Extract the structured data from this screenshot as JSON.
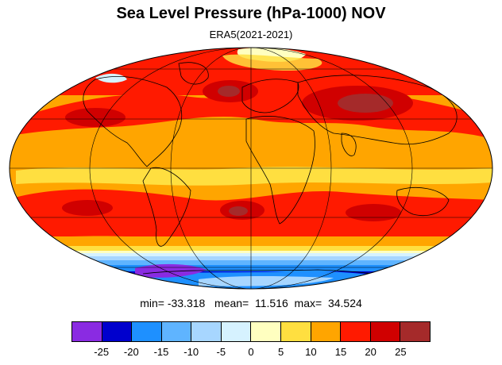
{
  "title": "Sea Level Pressure (hPa-1000) NOV",
  "subtitle": "ERA5(2021-2021)",
  "stats": {
    "min_label": "min=",
    "min": "-33.318",
    "mean_label": "mean=",
    "mean": "11.516",
    "max_label": "max=",
    "max": "34.524"
  },
  "colorbar": {
    "colors": [
      "#8a2be2",
      "#0000cd",
      "#1e90ff",
      "#5fb4ff",
      "#a7d6ff",
      "#d6f2ff",
      "#ffffc0",
      "#ffdf40",
      "#ffa500",
      "#ff1a00",
      "#d00000",
      "#a52a2a"
    ],
    "ticks": [
      "-25",
      "-20",
      "-15",
      "-10",
      "-5",
      "0",
      "5",
      "10",
      "15",
      "20",
      "25"
    ]
  },
  "map": {
    "projection": "mollweide",
    "background_color": "#ffa500",
    "land_outline_color": "#000000",
    "graticule_color": "#000000"
  }
}
